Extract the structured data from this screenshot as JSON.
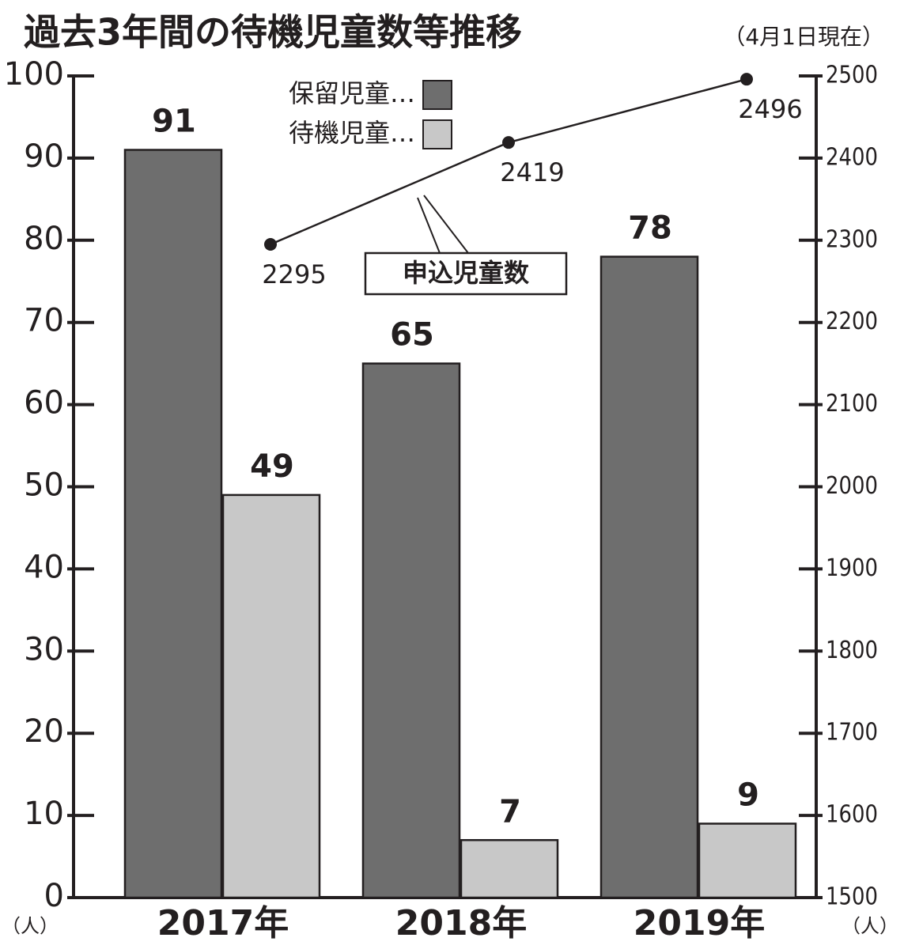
{
  "chart_data": {
    "type": "bar",
    "title": "過去3年間の待機児童数等推移",
    "subtitle": "（4月1日現在）",
    "y_axis_label": "（人）",
    "y2_axis_label": "（人）",
    "categories": [
      "2017年",
      "2018年",
      "2019年"
    ],
    "series": [
      {
        "name": "保留児童…",
        "color": "#6e6e6e",
        "values": [
          91,
          65,
          78
        ]
      },
      {
        "name": "待機児童…",
        "color": "#c8c8c8",
        "values": [
          49,
          7,
          9
        ]
      },
      {
        "name": "申込児童数",
        "type": "line",
        "axis": "y2",
        "color": "#231f20",
        "values": [
          2295,
          2419,
          2496
        ]
      }
    ],
    "ylim": [
      0,
      100
    ],
    "yticks": [
      0,
      10,
      20,
      30,
      40,
      50,
      60,
      70,
      80,
      90,
      100
    ],
    "y2lim": [
      1500,
      2500
    ],
    "y2ticks": [
      1500,
      1600,
      1700,
      1800,
      1900,
      2000,
      2100,
      2200,
      2300,
      2400,
      2500
    ],
    "legend": "top"
  }
}
